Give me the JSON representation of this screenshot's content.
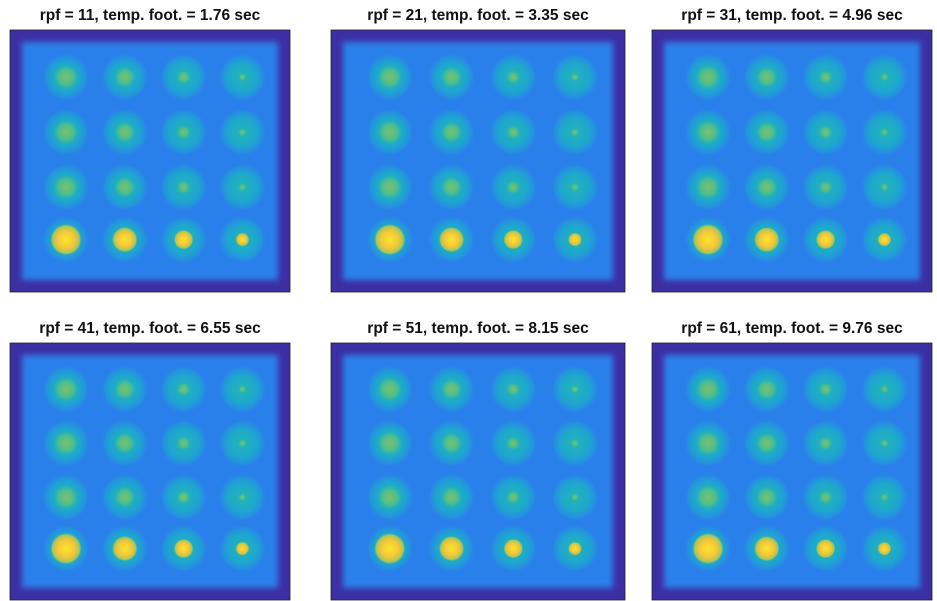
{
  "panels": [
    {
      "title": "rpf = 11, temp. foot. = 1.76 sec"
    },
    {
      "title": "rpf = 21, temp. foot. = 3.35 sec"
    },
    {
      "title": "rpf = 31, temp. foot. = 4.96 sec"
    },
    {
      "title": "rpf = 41, temp. foot. = 6.55 sec"
    },
    {
      "title": "rpf = 51, temp. foot. = 8.15 sec"
    },
    {
      "title": "rpf = 61, temp. foot. = 9.76 sec"
    }
  ]
}
